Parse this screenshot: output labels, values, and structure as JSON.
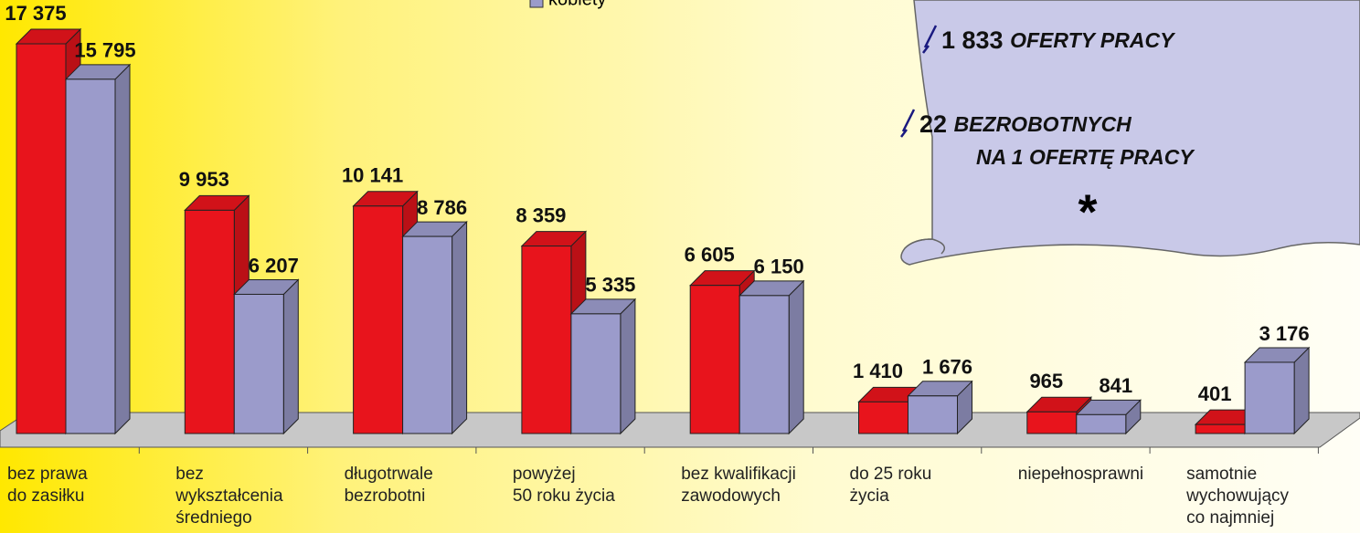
{
  "chart_data": {
    "type": "bar3d",
    "categories": [
      "bez prawa\ndo zasiłku",
      "bez\nwykształcenia\nśredniego",
      "długotrwale\nbezrobotni",
      "powyżej\n50 roku życia",
      "bez kwalifikacji\nzawodowych",
      "do 25 roku\nżycia",
      "niepełnosprawni",
      "samotnie\nwychowujący\nco najmniej"
    ],
    "series": [
      {
        "color": "#e8141c",
        "values": [
          17375,
          9953,
          10141,
          8359,
          6605,
          1410,
          965,
          401
        ],
        "value_labels": [
          "17 375",
          "9 953",
          "10 141",
          "8 359",
          "6 605",
          "1 410",
          "965",
          "401"
        ]
      },
      {
        "name": "kobiety",
        "color": "#9b9bcb",
        "values": [
          15795,
          6207,
          8786,
          5335,
          6150,
          1676,
          841,
          3176
        ],
        "value_labels": [
          "15 795",
          "6 207",
          "8 786",
          "5 335",
          "6 150",
          "1 676",
          "841",
          "3 176"
        ]
      }
    ],
    "notes": [
      {
        "number": "1 833",
        "text": "OFERTY PRACY"
      },
      {
        "number": "22",
        "text": "BEZROBOTNYCH",
        "text2": "NA 1 OFERTĘ PRACY"
      }
    ],
    "asterisk": "*"
  }
}
